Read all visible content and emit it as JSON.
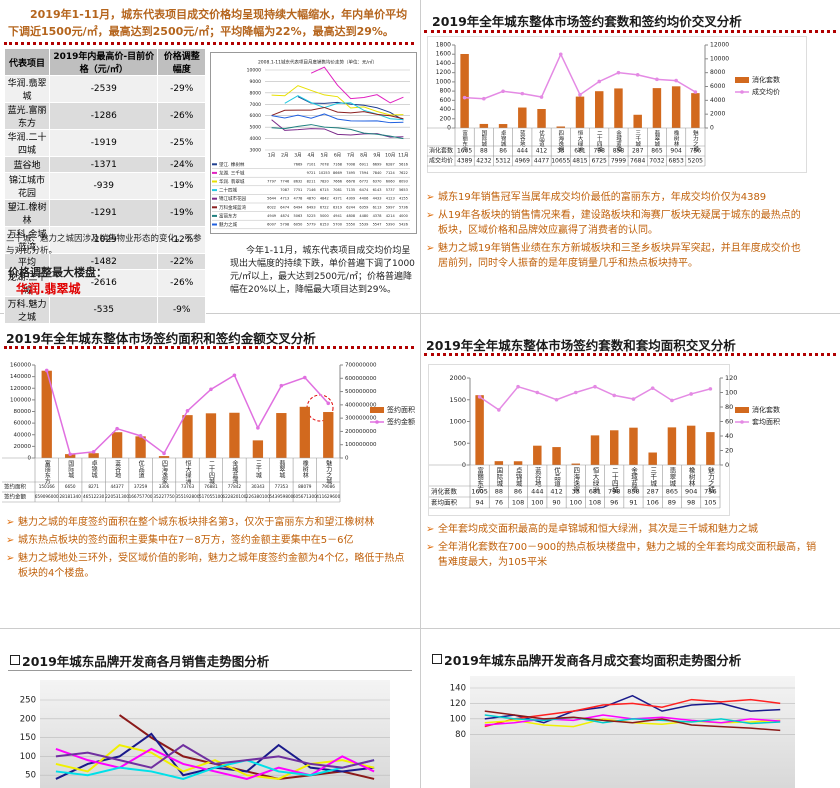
{
  "panels": [
    {
      "header": "2019年1-11月，城东代表项目成交价格均呈现持续大幅缩水，年内单价平均下调近1500元/㎡，最高达到2500元/㎡；平均降幅为22%，最高达到29%。",
      "table": {
        "headers": [
          "代表项目",
          "2019年内最高价-目前价格（元/㎡）",
          "价格调整幅度"
        ],
        "rows": [
          [
            "华润.翡翠城",
            -2539,
            "-29%"
          ],
          [
            "蓝光.富丽东方",
            -1286,
            "-26%"
          ],
          [
            "华润.二十四城",
            -1919,
            "-25%"
          ],
          [
            "蓝谷地",
            -1371,
            "-24%"
          ],
          [
            "锦江城市花园",
            -939,
            "-19%"
          ],
          [
            "望江.橡树林",
            -1291,
            "-19%"
          ],
          [
            "万科.金域蓝湾",
            -1029,
            "-12%"
          ],
          [
            "平均",
            -1482,
            "-22%"
          ],
          [
            "龙湖.三千城",
            -2616,
            "-26%"
          ],
          [
            "万科.魅力之城",
            -535,
            "-9%"
          ]
        ]
      },
      "note": "三千城、魅力之城因涉及销售物业形态的变化，不参与对比分析。",
      "max_label": "价格调整最大楼盘：",
      "max_project": "华润.翡翠城",
      "paragraph": "今年1-11月，城东代表项目成交均价均呈现出大幅度的持续下跌，单价普遍下调了1000元/㎡以上，最大达到2500元/㎡；价格普遍降幅在20%以上，降幅最大项目达到29%。"
    },
    {
      "title": "2019年全年城东整体市场签约套数和签约均价交叉分析",
      "bullets": [
        "城东19年销售冠军当属年成交均价最低的富丽东方，年成交均价仅为4389",
        "从19年各板块的销售情况来看，建设路板块和海赛厂板块无疑属于城东的最热点的板块，区域价格和品牌效应赢得了消费者的认同。",
        "魅力之城19年销售业绩在东方新城板块和三圣乡板块异军突起，并且年度成交价也居前列，同时令人振奋的是年度销量几乎和热点板块持平。"
      ]
    },
    {
      "title": "2019年全年城东整体市场签约面积和签约金额交叉分析",
      "bullets": [
        "魅力之城的年度签约面积在整个城东板块排名第3，仅次于富丽东方和望江橡树林",
        "城东热点板块的签约面积主要集中在7－8万方，签约金额主要集中在5－6亿",
        "魅力之城地处三环外，受区域价值的影响，魅力之城年度签约金额为4个亿，略低于热点板块的4个楼盘。"
      ]
    },
    {
      "title": "2019年全年城东整体市场签约套数和套均面积交叉分析",
      "bullets": [
        "全年套均成交面积最高的是卓锦城和恒大绿洲，其次是三千城和魅力之城",
        "全年消化套数在700－900的热点板块楼盘中，魅力之城的全年套均成交面积最高，销售难度最大，为105平米"
      ]
    },
    {
      "title": "2019年城东品牌开发商各月销售走势图分析"
    },
    {
      "title": "2019年城东品牌开发商各月成交套均面积走势图分析"
    }
  ],
  "chart_data": [
    {
      "type": "line",
      "title": "2008.1-11城东代表项目月度销售均价走势（单位：元/㎡）",
      "categories": [
        "1月",
        "2月",
        "3月",
        "4月",
        "5月",
        "6月",
        "7月",
        "8月",
        "9月",
        "10月",
        "11月"
      ],
      "ylim": [
        3000,
        10000
      ],
      "yticks": [
        3000,
        4000,
        5000,
        6000,
        7000,
        8000,
        9000,
        10000
      ],
      "grid": true,
      "series": [
        {
          "name": "望江. 橡树林",
          "color": "#1f3f8f",
          "values": [
            null,
            null,
            7669,
            7101,
            7078,
            7168,
            7008,
            6911,
            6699,
            6287,
            5616
          ]
        },
        {
          "name": "龙湖. 三千城",
          "color": "#e020c0",
          "values": [
            null,
            null,
            null,
            9721,
            10253,
            8669,
            7495,
            7594,
            7840,
            7124,
            7622
          ]
        },
        {
          "name": "华润. 翡翠城",
          "color": "#e8e000",
          "values": [
            7797,
            7746,
            8632,
            8211,
            7820,
            7666,
            6678,
            6772,
            6370,
            6060,
            6093
          ]
        },
        {
          "name": "二十四城",
          "color": "#20c8e0",
          "values": [
            null,
            7087,
            7751,
            7146,
            6715,
            7081,
            7135,
            6474,
            6143,
            5737,
            5653
          ]
        },
        {
          "name": "锦江城市花园",
          "color": "#7a2a8a",
          "values": [
            5644,
            4713,
            4778,
            4870,
            4842,
            4371,
            4309,
            4406,
            4433,
            4123,
            4155
          ]
        },
        {
          "name": "万科金域蓝湾",
          "color": "#8b2020",
          "values": [
            6022,
            6474,
            6494,
            6493,
            6722,
            6319,
            6244,
            6359,
            6113,
            5997,
            5736
          ]
        },
        {
          "name": "富丽东方",
          "color": "#208080",
          "values": [
            4949,
            4874,
            5063,
            5225,
            5000,
            4941,
            4808,
            4480,
            4378,
            4214,
            4000
          ]
        },
        {
          "name": "魅力之城",
          "color": "#2060e0",
          "values": [
            6007,
            5798,
            6050,
            5779,
            6153,
            5700,
            5550,
            5539,
            5547,
            5390,
            5426
          ]
        }
      ]
    },
    {
      "type": "bar",
      "categories": [
        "富丽东方",
        "国际城",
        "卓锦城",
        "蓝谷地",
        "优品道",
        "四海逸家",
        "恒大绿洲",
        "二十四城",
        "金域蓝湾",
        "三千城",
        "翡翠城",
        "橡树林",
        "魅力之城"
      ],
      "ylim": [
        0,
        1800
      ],
      "yticks": [
        0,
        200,
        400,
        600,
        800,
        1000,
        1200,
        1400,
        1600,
        1800
      ],
      "y2lim": [
        0,
        12000
      ],
      "y2ticks": [
        0,
        2000,
        4000,
        6000,
        8000,
        10000,
        12000
      ],
      "legend": "right",
      "series": [
        {
          "name": "消化套数",
          "color": "#d2691e",
          "values": [
            1605,
            88,
            86,
            444,
            412,
            33,
            681,
            798,
            858,
            287,
            865,
            904,
            756
          ]
        },
        {
          "name": "成交均价",
          "color": "#e48ae4",
          "axis": "y2",
          "values": [
            4389,
            4232,
            5312,
            4969,
            4477,
            10655,
            4815,
            6725,
            7999,
            7684,
            7032,
            6853,
            5205
          ]
        }
      ]
    },
    {
      "type": "bar",
      "categories": [
        "富丽东方",
        "国际城",
        "卓锦城",
        "蓝谷地",
        "优品道",
        "四海逸家",
        "恒大绿洲",
        "二十四城",
        "金域蓝湾",
        "三千城",
        "翡翠城",
        "橡树林",
        "魅力之城"
      ],
      "ylim": [
        0,
        160000
      ],
      "yticks": [
        0,
        20000,
        40000,
        60000,
        80000,
        100000,
        120000,
        140000,
        160000
      ],
      "y2lim": [
        0,
        700000000
      ],
      "y2ticks": [
        0,
        100000000,
        200000000,
        300000000,
        400000000,
        500000000,
        600000000,
        700000000
      ],
      "legend": "right",
      "series": [
        {
          "name": "签约面积",
          "color": "#d2691e",
          "values": [
            150166,
            6650,
            8271,
            44377,
            37259,
            3306,
            73763,
            76881,
            77842,
            30343,
            77353,
            88079,
            79086
          ]
        },
        {
          "name": "签约金额",
          "color": "#e070e0",
          "axis": "y2",
          "values": [
            659096000,
            28181340,
            46512230,
            220531300,
            166757700,
            35227750,
            355192800,
            517055100,
            622820100,
            226380100,
            543959800,
            605671300,
            411629600
          ]
        }
      ]
    },
    {
      "type": "bar",
      "categories": [
        "富丽东方",
        "国际城",
        "卓锦城",
        "蓝谷地",
        "优品道",
        "四海逸家",
        "恒大绿洲",
        "二十四城",
        "金域蓝湾",
        "三千城",
        "翡翠城",
        "橡树林",
        "魅力之城"
      ],
      "ylim": [
        0,
        2000
      ],
      "yticks": [
        0,
        500,
        1000,
        1500,
        2000
      ],
      "y2lim": [
        0,
        120
      ],
      "y2ticks": [
        0,
        20,
        40,
        60,
        80,
        100,
        120
      ],
      "legend": "right",
      "series": [
        {
          "name": "消化套数",
          "color": "#d2691e",
          "values": [
            1605,
            88,
            86,
            444,
            412,
            33,
            681,
            798,
            858,
            287,
            865,
            904,
            756
          ]
        },
        {
          "name": "套均面积",
          "color": "#e48ae4",
          "axis": "y2",
          "values": [
            94,
            76,
            108,
            100,
            90,
            100,
            108,
            96,
            91,
            106,
            89,
            98,
            105
          ]
        }
      ]
    },
    {
      "type": "line",
      "categories": [
        null,
        null,
        null,
        null,
        null,
        null,
        null,
        null,
        null,
        null,
        null
      ],
      "ylim": [
        0,
        250
      ],
      "yticks": [
        50,
        100,
        150,
        200,
        250
      ],
      "grid": true,
      "series": [
        {
          "color": "#8b1a1a",
          "values": [
            null,
            null,
            210,
            150,
            100,
            80,
            60,
            40,
            50,
            60,
            40
          ]
        },
        {
          "color": "#1a1a8b",
          "values": [
            40,
            80,
            100,
            160,
            50,
            70,
            60,
            130,
            70,
            60,
            70
          ]
        },
        {
          "color": "#f0f000",
          "values": [
            80,
            60,
            130,
            110,
            60,
            90,
            50,
            40,
            80,
            90,
            70
          ]
        },
        {
          "color": "#ff00ff",
          "values": [
            120,
            90,
            70,
            120,
            80,
            60,
            40,
            70,
            50,
            100,
            60
          ]
        },
        {
          "color": "#00e0e8",
          "values": [
            60,
            50,
            70,
            60,
            40,
            70,
            90,
            60,
            50,
            70,
            90
          ]
        },
        {
          "color": "#7030a0",
          "values": [
            100,
            110,
            90,
            70,
            130,
            80,
            90,
            100,
            80,
            70,
            90
          ]
        }
      ]
    },
    {
      "type": "line",
      "categories": [
        null,
        null,
        null,
        null,
        null,
        null,
        null,
        null,
        null,
        null,
        null
      ],
      "ylim": [
        0,
        140
      ],
      "yticks": [
        80,
        100,
        120,
        140
      ],
      "grid": true,
      "series": [
        {
          "color": "#1a1a8b",
          "values": [
            100,
            105,
            95,
            110,
            115,
            130,
            110,
            118,
            120,
            110,
            112
          ]
        },
        {
          "color": "#ff2020",
          "values": [
            90,
            100,
            105,
            110,
            118,
            120,
            115,
            125,
            122,
            125,
            120
          ]
        },
        {
          "color": "#f0f000",
          "values": [
            95,
            98,
            92,
            90,
            100,
            95,
            93,
            97,
            95,
            96,
            98
          ]
        },
        {
          "color": "#ff00ff",
          "values": [
            92,
            95,
            100,
            98,
            105,
            100,
            102,
            98,
            95,
            100,
            97
          ]
        },
        {
          "color": "#00cccc",
          "values": [
            105,
            100,
            98,
            102,
            95,
            100,
            98,
            96,
            100,
            94,
            96
          ]
        },
        {
          "color": "#8b1a1a",
          "values": [
            110,
            105,
            100,
            102,
            98,
            95,
            100,
            92,
            90,
            88,
            85
          ]
        }
      ]
    }
  ]
}
